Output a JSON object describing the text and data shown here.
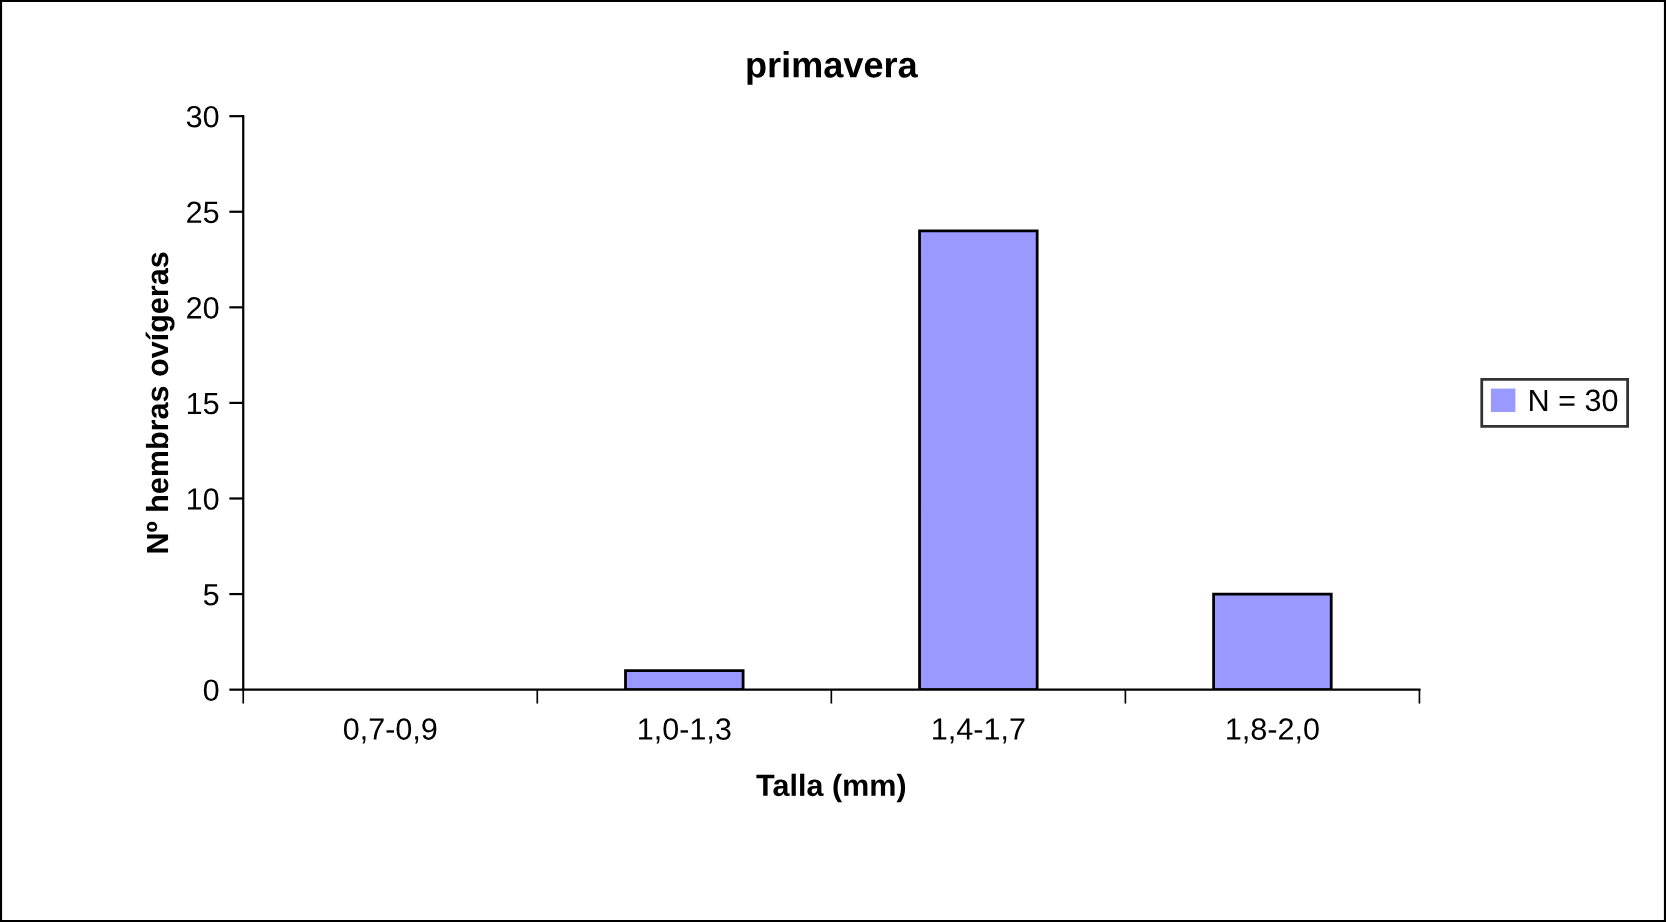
{
  "chart_data": {
    "type": "bar",
    "title": "primavera",
    "xlabel": "Talla (mm)",
    "ylabel": "Nº hembras ovígeras",
    "categories": [
      "0,7-0,9",
      "1,0-1,3",
      "1,4-1,7",
      "1,8-2,0"
    ],
    "series": [
      {
        "name": "N = 30",
        "color": "#9999ff",
        "values": [
          0,
          1,
          24,
          5
        ]
      }
    ],
    "ylim": [
      0,
      30
    ],
    "yticks": [
      0,
      5,
      10,
      15,
      20,
      25,
      30
    ],
    "grid": false,
    "legend": "right"
  }
}
